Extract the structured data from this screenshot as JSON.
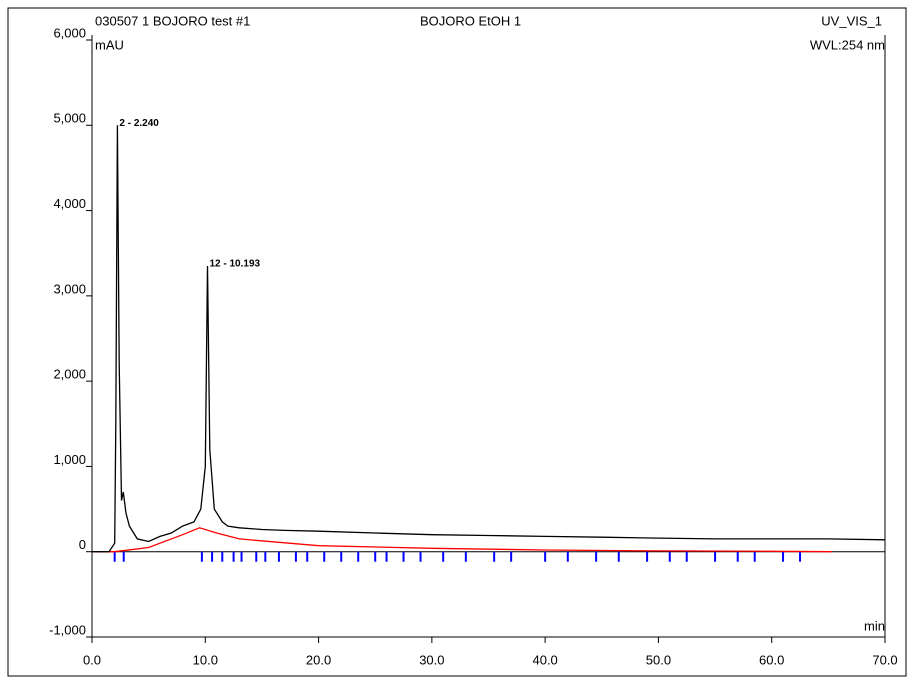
{
  "chart_data": {
    "type": "line",
    "title": "BOJORO EtOH 1",
    "sample": "030507  1 BOJORO test #1",
    "channel": "UV_VIS_1",
    "y_label": "mAU",
    "wavelength": "WVL:254 nm",
    "x_label": "min",
    "x": [
      0,
      1.5,
      2.0,
      2.1,
      2.24,
      2.4,
      2.6,
      2.767,
      3.0,
      3.3,
      4,
      5,
      6,
      7,
      8,
      9,
      9.6,
      10.0,
      10.193,
      10.4,
      10.8,
      11.5,
      12,
      13,
      15,
      17,
      20,
      25,
      30,
      35,
      40,
      45,
      50,
      55,
      60,
      65,
      70
    ],
    "values": [
      0,
      0,
      100,
      1500,
      5000,
      2200,
      600,
      700,
      450,
      300,
      150,
      120,
      180,
      220,
      300,
      350,
      500,
      1000,
      3350,
      1200,
      500,
      350,
      300,
      280,
      260,
      250,
      240,
      220,
      200,
      190,
      180,
      170,
      160,
      150,
      150,
      150,
      140
    ],
    "color": "#000000",
    "baseline": {
      "x": [
        0,
        2.0,
        5,
        8,
        9.5,
        11,
        13,
        20,
        30,
        40,
        50,
        60,
        65.3
      ],
      "values": [
        0,
        0,
        50,
        200,
        280,
        220,
        150,
        70,
        40,
        20,
        10,
        5,
        0
      ],
      "color": "#ff0000"
    },
    "peak_marks": [
      2.0,
      2.8,
      9.7,
      10.6,
      11.5,
      12.5,
      13.2,
      14.5,
      15.3,
      16.5,
      18.0,
      19.0,
      20.5,
      22.0,
      23.5,
      25.0,
      26.0,
      27.5,
      29.0,
      31.0,
      33.0,
      35.5,
      37.0,
      40.0,
      42.0,
      44.5,
      46.5,
      49.0,
      51.0,
      52.5,
      55.0,
      57.0,
      58.5,
      61.0,
      62.5
    ],
    "peak_mark_color": "#0000ff",
    "annotations": [
      {
        "text": "2 - 2.240",
        "x": 2.24,
        "y": 5000
      },
      {
        "text": "12 - 10.193",
        "x": 10.193,
        "y": 3350
      }
    ],
    "xlim": [
      0,
      70
    ],
    "ylim": [
      -1000,
      6000
    ],
    "xticks": [
      {
        "value": 0,
        "label": "0.0"
      },
      {
        "value": 10,
        "label": "10.0"
      },
      {
        "value": 20,
        "label": "20.0"
      },
      {
        "value": 30,
        "label": "30.0"
      },
      {
        "value": 40,
        "label": "40.0"
      },
      {
        "value": 50,
        "label": "50.0"
      },
      {
        "value": 60,
        "label": "60.0"
      },
      {
        "value": 70,
        "label": "70.0"
      }
    ],
    "yticks": [
      {
        "value": -1000,
        "label": "-1,000"
      },
      0,
      {
        "value": 1000,
        "label": "1,000"
      },
      {
        "value": 2000,
        "label": "2,000"
      },
      {
        "value": 3000,
        "label": "3,000"
      },
      {
        "value": 4000,
        "label": "4,000"
      },
      {
        "value": 5000,
        "label": "5,000"
      },
      {
        "value": 6000,
        "label": "6,000"
      }
    ]
  }
}
